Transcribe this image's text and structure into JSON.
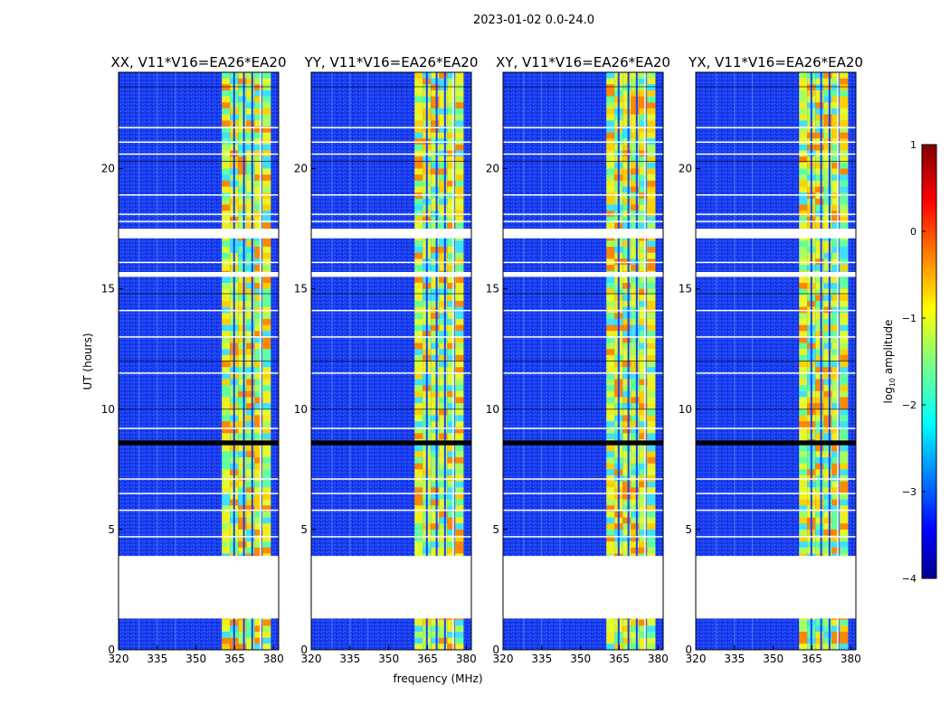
{
  "figure": {
    "suptitle": "2023-01-02 0.0-24.0",
    "xlabel": "frequency (MHz)",
    "ylabel": "UT (hours)",
    "colorbar_label_prefix": "log",
    "colorbar_label_sub": "10",
    "colorbar_label_suffix": " amplitude"
  },
  "chart_data": {
    "type": "heatmap",
    "x_ticks": [
      320,
      335,
      350,
      365,
      380
    ],
    "y_ticks": [
      0,
      5,
      10,
      15,
      20
    ],
    "xlim": [
      320,
      382
    ],
    "ylim": [
      0,
      24
    ],
    "colorbar": {
      "ticks": [
        1,
        0,
        -1,
        -2,
        -3,
        -4
      ],
      "range": [
        -4,
        1
      ],
      "colormap": "jet"
    },
    "panels": [
      {
        "title": "XX, V11*V16=EA26*EA20",
        "band_mhz": [
          360,
          379
        ]
      },
      {
        "title": "YY, V11*V16=EA26*EA20",
        "band_mhz": [
          360,
          379
        ]
      },
      {
        "title": "XY, V11*V16=EA26*EA20",
        "band_mhz": [
          360,
          379
        ]
      },
      {
        "title": "YX, V11*V16=EA26*EA20",
        "band_mhz": [
          360,
          379
        ]
      }
    ],
    "data_gaps_hours": [
      [
        1.3,
        3.9
      ],
      [
        17.1,
        17.5
      ],
      [
        15.5,
        15.7
      ]
    ],
    "flagged_hours": [
      [
        8.5,
        8.7
      ]
    ]
  }
}
